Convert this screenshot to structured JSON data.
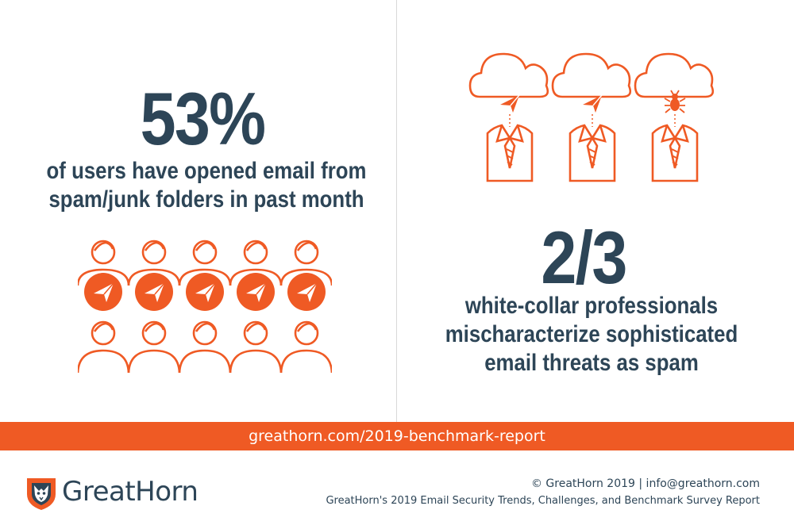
{
  "left": {
    "stat": "53%",
    "description_line1": "of users have opened email from",
    "description_line2": "spam/junk folders in past month",
    "icons": "person-icons-with-paper-plane"
  },
  "right": {
    "stat": "2/3",
    "description_line1": "white-collar professionals",
    "description_line2": "mischaracterize sophisticated",
    "description_line3": "email threats as spam",
    "icons": "cloud-person-icons"
  },
  "banner": {
    "text": "greathorn.com/2019-benchmark-report"
  },
  "footer": {
    "brand": "GreatHorn",
    "line1": "© GreatHorn 2019  |  info@greathorn.com",
    "line2": "GreatHorn's 2019 Email Security Trends, Challenges, and Benchmark Survey Report"
  },
  "colors": {
    "accent": "#ef5a24",
    "text": "#2d4557",
    "divider": "#d9d9d9"
  }
}
